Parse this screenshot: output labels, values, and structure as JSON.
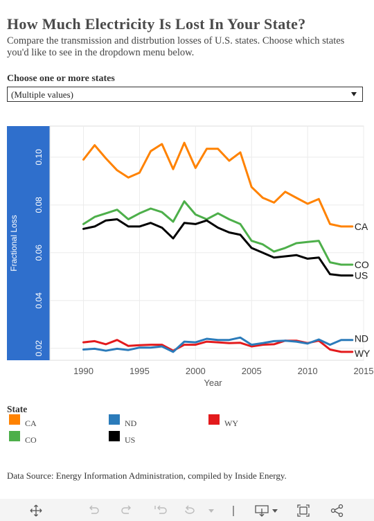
{
  "header": {
    "title": "How Much Electricity Is Lost In Your State?",
    "subtitle": "Compare the transmission and distrbution losses of U.S. states. Choose which states you'd like to see in the dropdown menu below."
  },
  "filter": {
    "label": "Choose one or more states",
    "selected": "(Multiple values)"
  },
  "chart_data": {
    "type": "line",
    "xlabel": "Year",
    "ylabel": "Fractional Loss",
    "xlim": [
      1987,
      2015
    ],
    "ylim": [
      0.015,
      0.113
    ],
    "x_ticks": [
      "1990",
      "1995",
      "2000",
      "2005",
      "2010",
      "2015"
    ],
    "y_ticks": [
      "0.02",
      "0.04",
      "0.06",
      "0.08",
      "0.10"
    ],
    "grid": true,
    "x": [
      1990,
      1991,
      1992,
      1993,
      1994,
      1995,
      1996,
      1997,
      1998,
      1999,
      2000,
      2001,
      2002,
      2003,
      2004,
      2005,
      2006,
      2007,
      2008,
      2009,
      2010,
      2011,
      2012,
      2013,
      2014
    ],
    "series": [
      {
        "name": "CA",
        "color": "#ff8200",
        "values": [
          0.099,
          0.105,
          0.0995,
          0.0945,
          0.0915,
          0.0935,
          0.1025,
          0.1055,
          0.095,
          0.106,
          0.0955,
          0.1035,
          0.1035,
          0.0985,
          0.102,
          0.0875,
          0.083,
          0.081,
          0.0855,
          0.083,
          0.0805,
          0.0825,
          0.072,
          0.071,
          0.071
        ]
      },
      {
        "name": "CO",
        "color": "#4daf4a",
        "values": [
          0.072,
          0.075,
          0.0765,
          0.078,
          0.074,
          0.0765,
          0.0785,
          0.077,
          0.073,
          0.0815,
          0.076,
          0.074,
          0.0765,
          0.074,
          0.072,
          0.065,
          0.0635,
          0.0605,
          0.062,
          0.064,
          0.0645,
          0.065,
          0.056,
          0.055,
          0.055
        ]
      },
      {
        "name": "US",
        "color": "#000000",
        "values": [
          0.07,
          0.071,
          0.0735,
          0.074,
          0.071,
          0.071,
          0.0725,
          0.0705,
          0.066,
          0.0725,
          0.072,
          0.0735,
          0.0705,
          0.0685,
          0.0675,
          0.062,
          0.06,
          0.058,
          0.0585,
          0.059,
          0.0575,
          0.058,
          0.051,
          0.0505,
          0.0505
        ]
      },
      {
        "name": "ND",
        "color": "#2b7bba",
        "values": [
          0.0195,
          0.0198,
          0.019,
          0.0198,
          0.0193,
          0.0203,
          0.0203,
          0.0208,
          0.0185,
          0.0228,
          0.0225,
          0.024,
          0.0235,
          0.0235,
          0.0245,
          0.0215,
          0.0222,
          0.023,
          0.0232,
          0.0228,
          0.022,
          0.0237,
          0.0215,
          0.0235,
          0.0235
        ]
      },
      {
        "name": "WY",
        "color": "#e31a1c",
        "values": [
          0.0225,
          0.023,
          0.0217,
          0.0235,
          0.021,
          0.0213,
          0.0215,
          0.0215,
          0.019,
          0.0215,
          0.0215,
          0.0228,
          0.0225,
          0.0222,
          0.0223,
          0.0208,
          0.0215,
          0.0217,
          0.0232,
          0.0232,
          0.0222,
          0.0232,
          0.0195,
          0.0185,
          0.0185
        ]
      }
    ]
  },
  "legend": {
    "title": "State",
    "items": [
      {
        "label": "CA",
        "color": "#ff8200"
      },
      {
        "label": "ND",
        "color": "#2b7bba"
      },
      {
        "label": "WY",
        "color": "#e31a1c"
      },
      {
        "label": "CO",
        "color": "#4daf4a"
      },
      {
        "label": "US",
        "color": "#000000"
      }
    ]
  },
  "source": "Data Source: Energy Information Administration, compiled by Inside Energy.",
  "toolbar": {
    "icons": [
      "move-icon",
      "undo-icon",
      "redo-icon",
      "revert-icon",
      "refresh-icon",
      "pause-icon",
      "download-icon",
      "fullscreen-icon",
      "share-icon"
    ]
  },
  "colors": {
    "axis_band": "#2f6fcc",
    "toolbar_bg": "#f4f4f4"
  }
}
